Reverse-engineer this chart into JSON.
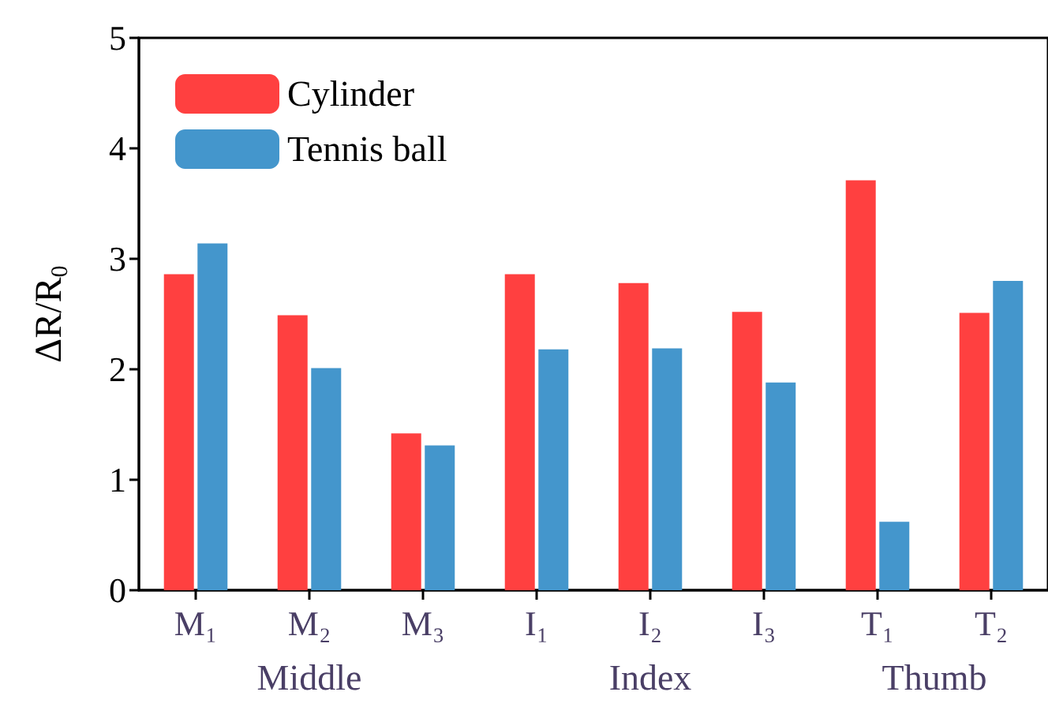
{
  "chart_data": {
    "type": "bar",
    "ylabel": "ΔR/R$_{0}$",
    "categories": [
      "M₁",
      "M₂",
      "M₃",
      "I₁",
      "I₂",
      "I₃",
      "T₁",
      "T₂"
    ],
    "series": [
      {
        "name": "Cylinder",
        "color": "#ff4040",
        "values": [
          2.86,
          2.49,
          1.42,
          2.86,
          2.78,
          2.52,
          3.71,
          2.51
        ]
      },
      {
        "name": "Tennis ball",
        "color": "#4496cc",
        "values": [
          3.14,
          2.01,
          1.31,
          2.18,
          2.19,
          1.88,
          0.62,
          2.8
        ]
      }
    ],
    "ylim": [
      0,
      5
    ],
    "yticks": [
      0,
      1,
      2,
      3,
      4,
      5
    ],
    "grid": false,
    "legend": "top left",
    "annotations": [
      "Middle",
      "Index",
      "Thumb"
    ]
  }
}
